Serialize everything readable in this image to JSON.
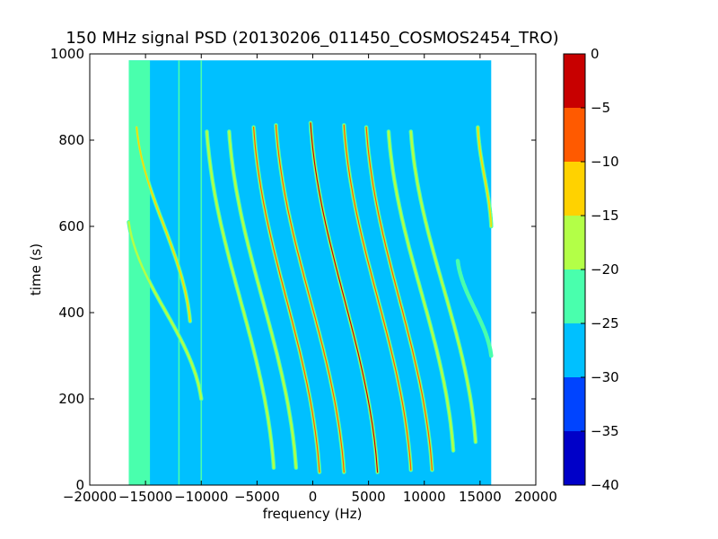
{
  "chart_data": {
    "type": "heatmap",
    "title": "150 MHz signal PSD (20130206_011450_COSMOS2454_TRO)",
    "xlabel": "frequency (Hz)",
    "ylabel": "time (s)",
    "xlim": [
      -20000,
      20000
    ],
    "ylim": [
      0,
      1000
    ],
    "x_ticks": [
      -20000,
      -15000,
      -10000,
      -5000,
      0,
      5000,
      10000,
      15000,
      20000
    ],
    "y_ticks": [
      0,
      200,
      400,
      600,
      800,
      1000
    ],
    "data_extent": {
      "x": [
        -16500,
        16000
      ],
      "y": [
        0,
        985
      ]
    },
    "background_level": -27,
    "edge_band": {
      "x": [
        -16500,
        -14600
      ],
      "level": -23
    },
    "vertical_lines": [
      {
        "x": -12000,
        "level": -24
      },
      {
        "x": -10000,
        "level": -23
      }
    ],
    "traces": [
      {
        "x_top": -15800,
        "x_bottom": -11000,
        "y_top": 830,
        "y_bottom": 380,
        "peak_level": -14
      },
      {
        "x_top": -16500,
        "x_bottom": -10000,
        "y_top": 610,
        "y_bottom": 200,
        "peak_level": -18
      },
      {
        "x_top": -9500,
        "x_bottom": -3500,
        "y_top": 820,
        "y_bottom": 40,
        "peak_level": -17
      },
      {
        "x_top": -7500,
        "x_bottom": -1500,
        "y_top": 820,
        "y_bottom": 40,
        "peak_level": -16
      },
      {
        "x_top": -5300,
        "x_bottom": 600,
        "y_top": 830,
        "y_bottom": 30,
        "peak_level": -9
      },
      {
        "x_top": -3300,
        "x_bottom": 2800,
        "y_top": 835,
        "y_bottom": 30,
        "peak_level": -9
      },
      {
        "x_top": -200,
        "x_bottom": 5800,
        "y_top": 840,
        "y_bottom": 30,
        "peak_level": -4
      },
      {
        "x_top": 2800,
        "x_bottom": 8800,
        "y_top": 835,
        "y_bottom": 35,
        "peak_level": -8
      },
      {
        "x_top": 4800,
        "x_bottom": 10700,
        "y_top": 830,
        "y_bottom": 35,
        "peak_level": -9
      },
      {
        "x_top": 6800,
        "x_bottom": 12600,
        "y_top": 820,
        "y_bottom": 80,
        "peak_level": -16
      },
      {
        "x_top": 8800,
        "x_bottom": 14600,
        "y_top": 820,
        "y_bottom": 100,
        "peak_level": -18
      },
      {
        "x_top": 14800,
        "x_bottom": 16000,
        "y_top": 830,
        "y_bottom": 600,
        "peak_level": -15
      },
      {
        "x_top": 13000,
        "x_bottom": 16000,
        "y_top": 520,
        "y_bottom": 300,
        "peak_level": -24
      }
    ],
    "colorbar": {
      "range": [
        -40,
        0
      ],
      "ticks": [
        0,
        -5,
        -10,
        -15,
        -20,
        -25,
        -30,
        -35,
        -40
      ],
      "levels": [
        {
          "from": -40,
          "to": -35,
          "color": "#0000c8"
        },
        {
          "from": -35,
          "to": -30,
          "color": "#0044ff"
        },
        {
          "from": -30,
          "to": -25,
          "color": "#00c0ff"
        },
        {
          "from": -25,
          "to": -20,
          "color": "#49ffad"
        },
        {
          "from": -20,
          "to": -15,
          "color": "#b3ff47"
        },
        {
          "from": -15,
          "to": -10,
          "color": "#ffd200"
        },
        {
          "from": -10,
          "to": -5,
          "color": "#ff5a00"
        },
        {
          "from": -5,
          "to": 0,
          "color": "#c80000"
        }
      ]
    }
  }
}
